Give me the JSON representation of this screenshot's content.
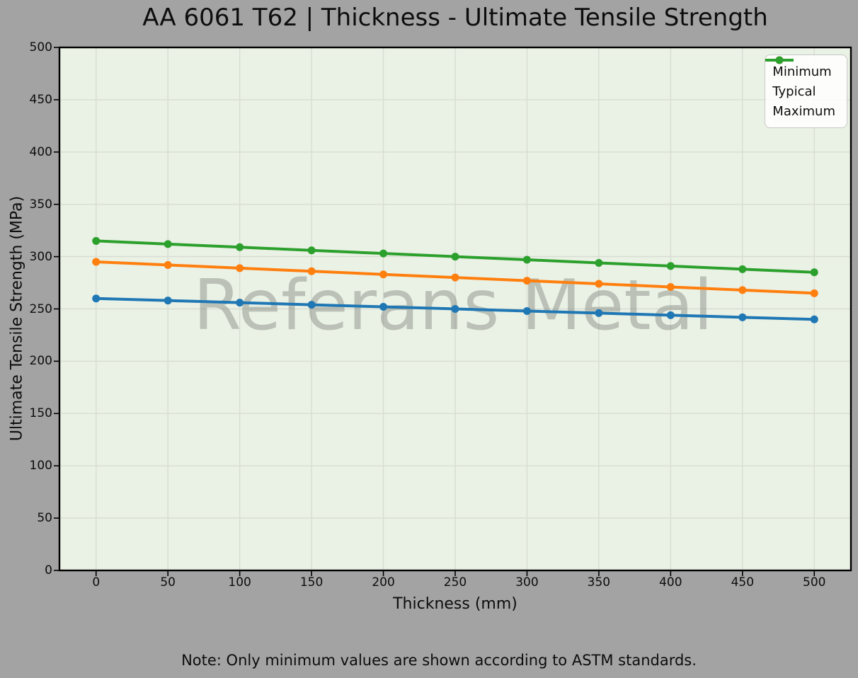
{
  "title": "AA 6061 T62 | Thickness - Ultimate Tensile Strength",
  "watermark": "Referans Metal",
  "note": "Note: Only minimum values are shown according to ASTM standards.",
  "chart_data": {
    "type": "line",
    "title": "AA 6061 T62 | Thickness - Ultimate Tensile Strength",
    "xlabel": "Thickness (mm)",
    "ylabel": "Ultimate Tensile Strength (MPa)",
    "x": [
      0,
      50,
      100,
      150,
      200,
      250,
      300,
      350,
      400,
      450,
      500
    ],
    "series": [
      {
        "name": "Minimum",
        "color": "#1f77b4",
        "values": [
          260,
          258,
          256,
          254,
          252,
          250,
          248,
          246,
          244,
          242,
          240
        ]
      },
      {
        "name": "Typical",
        "color": "#ff7f0e",
        "values": [
          295,
          292,
          289,
          286,
          283,
          280,
          277,
          274,
          271,
          268,
          265
        ]
      },
      {
        "name": "Maximum",
        "color": "#2ca02c",
        "values": [
          315,
          312,
          309,
          306,
          303,
          300,
          297,
          294,
          291,
          288,
          285
        ]
      }
    ],
    "x_ticks": [
      0,
      50,
      100,
      150,
      200,
      250,
      300,
      350,
      400,
      450,
      500
    ],
    "y_ticks": [
      0,
      50,
      100,
      150,
      200,
      250,
      300,
      350,
      400,
      450,
      500
    ],
    "xlim": [
      -25.5,
      525.5
    ],
    "ylim": [
      0,
      500
    ],
    "grid": true,
    "legend_position": "upper right",
    "marker": "circle",
    "line_width": 4,
    "marker_radius": 5.5
  },
  "colors": {
    "figure_bg": "#a3a3a3",
    "plot_bg": "#eaf1e5",
    "grid_line": "#d7ddd2",
    "axis_frame": "#000000",
    "tick_color": "#000000",
    "watermark_text": "rgba(122,126,118,0.42)",
    "legend_bg": "rgba(255,255,255,0.87)",
    "legend_border": "#c9c9c9",
    "text": "#0d0d0d"
  }
}
